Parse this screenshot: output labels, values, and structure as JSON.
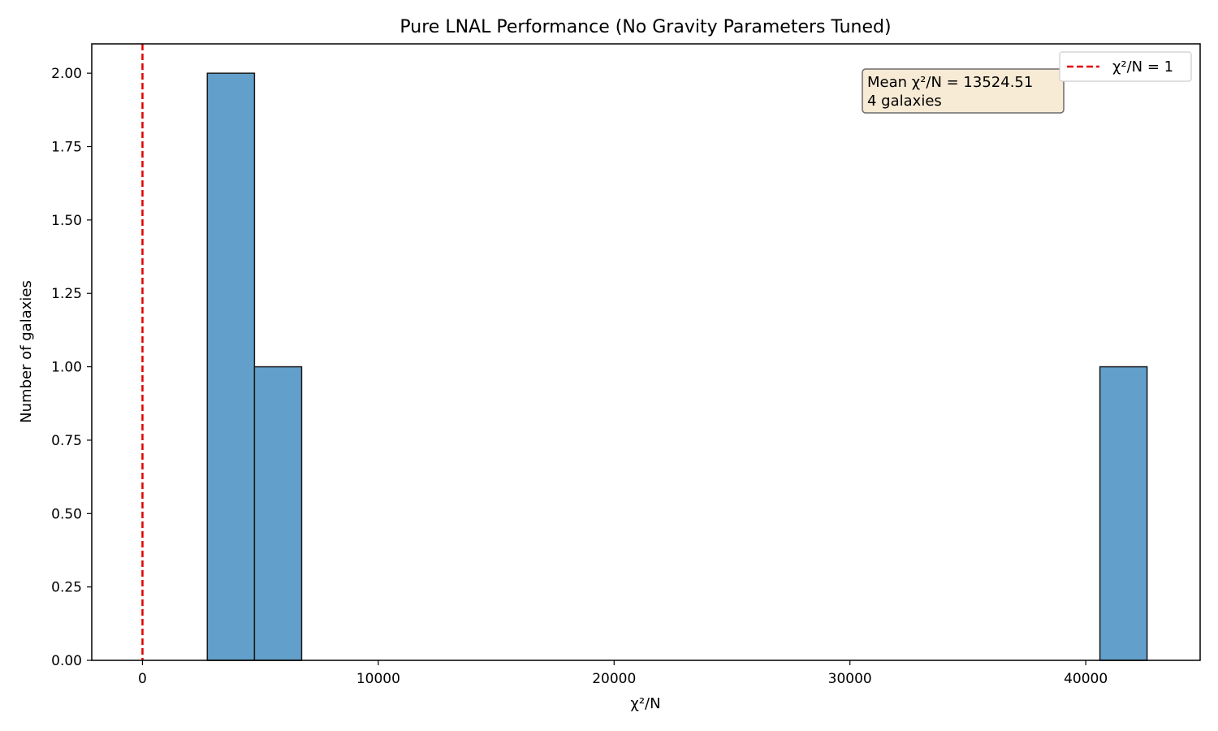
{
  "chart_data": {
    "type": "bar",
    "title": "Pure LNAL Performance (No Gravity Parameters Tuned)",
    "xlabel": "χ²/N",
    "ylabel": "Number of galaxies",
    "xlim": [
      -2150,
      44850
    ],
    "ylim": [
      0,
      2.1
    ],
    "xticks": [
      0,
      10000,
      20000,
      30000,
      40000
    ],
    "yticks": [
      0.0,
      0.25,
      0.5,
      0.75,
      1.0,
      1.25,
      1.5,
      1.75,
      2.0
    ],
    "bins": [
      {
        "x0": 2750,
        "x1": 4750,
        "count": 2
      },
      {
        "x0": 4750,
        "x1": 6750,
        "count": 1
      },
      {
        "x0": 40600,
        "x1": 42600,
        "count": 1
      }
    ],
    "reference_line": {
      "x": 1,
      "label": "χ²/N = 1",
      "color": "#e00000",
      "style": "dashed"
    },
    "annotation": {
      "line1": "Mean χ²/N = 13524.51",
      "line2": "4 galaxies"
    },
    "legend": {
      "placement": "top-right",
      "entries": [
        "χ²/N = 1"
      ]
    },
    "grid": false,
    "colors": {
      "bar": "#629fca",
      "bar_edge": "#1a1a1a",
      "annotation_bg": "#f8ebd6",
      "annotation_edge": "#6b6b6b"
    }
  }
}
